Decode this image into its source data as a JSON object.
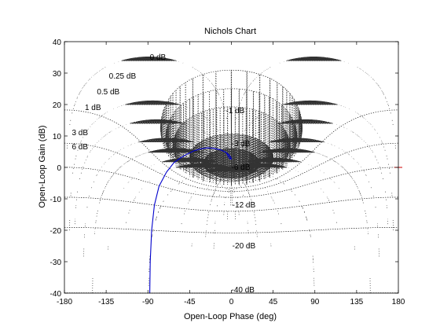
{
  "chart_data": {
    "type": "line",
    "title": "Nichols Chart",
    "xlabel": "Open-Loop Phase (deg)",
    "ylabel": "Open-Loop Gain (dB)",
    "xlim": [
      -180,
      180
    ],
    "ylim": [
      -40,
      40
    ],
    "xticks": [
      -180,
      -135,
      -90,
      -45,
      0,
      45,
      90,
      135,
      180
    ],
    "yticks": [
      -40,
      -30,
      -20,
      -10,
      0,
      10,
      20,
      30,
      40
    ],
    "xtick_labels": [
      "-180",
      "-135",
      "-90",
      "-45",
      "0",
      "45",
      "90",
      "135",
      "180"
    ],
    "ytick_labels": [
      "-40",
      "-30",
      "-20",
      "-10",
      "0",
      "10",
      "20",
      "30",
      "40"
    ],
    "grid": "Nichols grid (dotted)",
    "grid_labels": [
      {
        "text": "0 dB",
        "x": -88,
        "y": 35
      },
      {
        "text": "0.25 dB",
        "x": -132,
        "y": 29
      },
      {
        "text": "0.5 dB",
        "x": -145,
        "y": 24
      },
      {
        "text": "1 dB",
        "x": -158,
        "y": 19
      },
      {
        "text": "3 dB",
        "x": -172,
        "y": 11
      },
      {
        "text": "6 dB",
        "x": -172,
        "y": 6.5
      },
      {
        "text": "-1 dB",
        "x": -6,
        "y": 18
      },
      {
        "text": "-3 dB",
        "x": 0,
        "y": 7.5
      },
      {
        "text": "-6 dB",
        "x": 0,
        "y": 0
      },
      {
        "text": "-12 dB",
        "x": 1,
        "y": -12
      },
      {
        "text": "-20 dB",
        "x": 1,
        "y": -25
      },
      {
        "text": "-40 dB",
        "x": 0,
        "y": -39
      }
    ],
    "series": [
      {
        "color": "#0000cc",
        "x": [
          -88,
          -87.5,
          -86,
          -83,
          -78,
          -70,
          -62,
          -55,
          -48,
          -40,
          -33,
          -26,
          -20,
          -15,
          -11,
          -8,
          -5,
          -3,
          -1.5,
          -0.5,
          0,
          -1,
          -3,
          -5
        ],
        "y": [
          -40,
          -30,
          -20,
          -12,
          -6,
          -1.5,
          1.5,
          3,
          4.2,
          5.3,
          5.9,
          6.2,
          6.1,
          5.8,
          5.5,
          5.1,
          4.6,
          4.1,
          3.6,
          3.1,
          2.8,
          2.6,
          3.3,
          4.4
        ]
      }
    ],
    "markers": [
      {
        "color": "#cc0000",
        "x": 180,
        "y": 0
      }
    ],
    "colors": {
      "axis": "#000000",
      "grid": "#333333",
      "series": "#0000cc",
      "marker": "#cc0000"
    }
  }
}
